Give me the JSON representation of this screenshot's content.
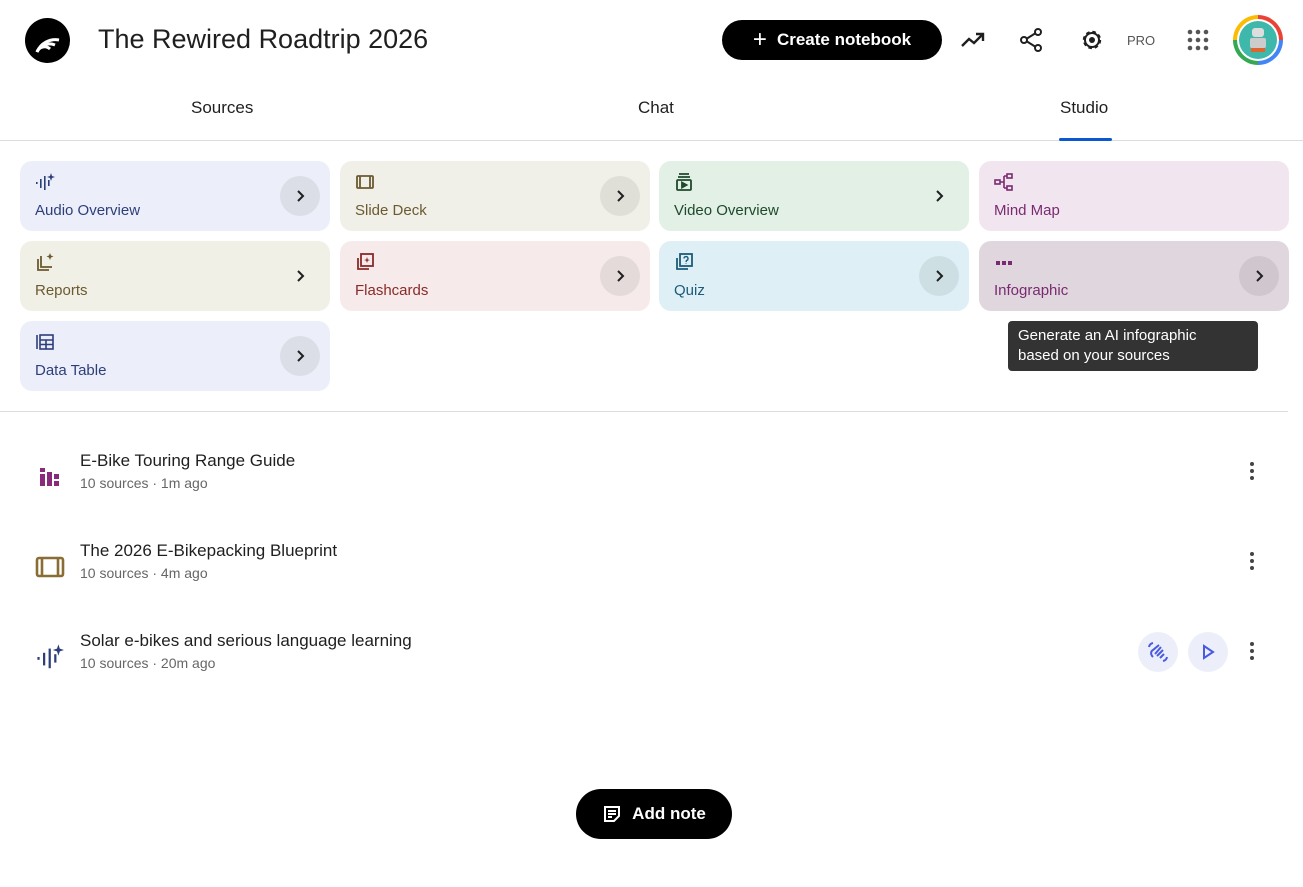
{
  "header": {
    "title": "The Rewired Roadtrip 2026",
    "create_label": "Create notebook",
    "pro_label": "PRO"
  },
  "tabs": [
    {
      "label": "Sources"
    },
    {
      "label": "Chat"
    },
    {
      "label": "Studio",
      "active": true
    }
  ],
  "studio_cards": [
    {
      "label": "Audio Overview",
      "icon": "audio-sparkle-icon",
      "bg": "#eceff9",
      "color": "#2d3f7a"
    },
    {
      "label": "Slide Deck",
      "icon": "slides-icon",
      "bg": "#f1f0e8",
      "color": "#6b5a30"
    },
    {
      "label": "Video Overview",
      "icon": "video-icon",
      "bg": "#e2f0e5",
      "color": "#1e4a2c"
    },
    {
      "label": "Mind Map",
      "icon": "mind-map-icon",
      "bg": "#f1e6f0",
      "color": "#7a2a70"
    },
    {
      "label": "Reports",
      "icon": "report-icon",
      "bg": "#f1f0e6",
      "color": "#6b5a30"
    },
    {
      "label": "Flashcards",
      "icon": "flashcards-icon",
      "bg": "#f6ebea",
      "color": "#8a2a2a"
    },
    {
      "label": "Quiz",
      "icon": "quiz-icon",
      "bg": "#def0f6",
      "color": "#1d5b78"
    },
    {
      "label": "Infographic",
      "icon": "infographic-icon",
      "bg": "#e0d6de",
      "color": "#7a2a70"
    },
    {
      "label": "Data Table",
      "icon": "table-icon",
      "bg": "#eceff9",
      "color": "#2d3f7a"
    }
  ],
  "tooltip": {
    "line1": "Generate an AI infographic",
    "line2": "based on your sources"
  },
  "notes": [
    {
      "title": "E-Bike Touring Range Guide",
      "meta": "10 sources · 1m ago",
      "icon": "infographic-icon"
    },
    {
      "title": "The 2026 E-Bikepacking Blueprint",
      "meta": "10 sources · 4m ago",
      "icon": "slides-icon"
    },
    {
      "title": "Solar e-bikes and serious language learning",
      "meta": "10 sources · 20m ago",
      "icon": "audio-sparkle-icon"
    }
  ],
  "add_note_label": "Add note"
}
